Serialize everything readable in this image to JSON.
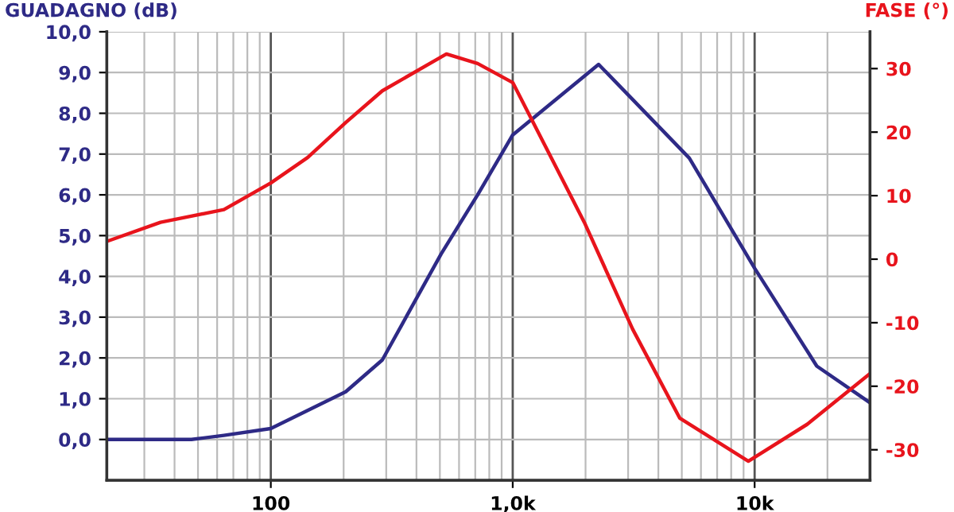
{
  "chart_data": {
    "type": "line",
    "ylabel": "GUADAGNO (dB)",
    "y2label": "FASE (°)",
    "log": "x",
    "grid": true,
    "line_style": "solid",
    "marker": "none",
    "xlim": [
      21,
      30000
    ],
    "xticks": [
      {
        "value": 100,
        "label": "100"
      },
      {
        "value": 1000,
        "label": "1,0k"
      },
      {
        "value": 10000,
        "label": "10k"
      }
    ],
    "ylim": [
      -1,
      10
    ],
    "yticks": [
      {
        "value": 0,
        "label": "0,0"
      },
      {
        "value": 1,
        "label": "1,0"
      },
      {
        "value": 2,
        "label": "2,0"
      },
      {
        "value": 3,
        "label": "3,0"
      },
      {
        "value": 4,
        "label": "4,0"
      },
      {
        "value": 5,
        "label": "5,0"
      },
      {
        "value": 6,
        "label": "6,0"
      },
      {
        "value": 7,
        "label": "7,0"
      },
      {
        "value": 8,
        "label": "8,0"
      },
      {
        "value": 9,
        "label": "9,0"
      },
      {
        "value": 10,
        "label": "10,0"
      }
    ],
    "y2lim": [
      -34.8,
      35.8
    ],
    "y2ticks": [
      -30,
      -20,
      -10,
      0,
      10,
      20,
      30
    ],
    "series": [
      {
        "color": "#2e2a86",
        "x": [
          21,
          47,
          64,
          100,
          204,
          289,
          506,
          716,
          1000,
          2265,
          5370,
          10000,
          18070,
          30000
        ],
        "values": [
          0,
          0,
          0.1,
          0.27,
          1.17,
          1.95,
          4.55,
          6.0,
          7.47,
          9.2,
          6.9,
          4.2,
          1.8,
          0.9
        ]
      },
      {
        "color": "#e8141c",
        "axis": "y2",
        "x": [
          21,
          35,
          64,
          100,
          142,
          204,
          289,
          532,
          716,
          1000,
          1977,
          3130,
          4900,
          9420,
          16480,
          30000
        ],
        "values": [
          2.8,
          5.8,
          7.8,
          12,
          16,
          21.5,
          26.5,
          32.3,
          30.8,
          27.8,
          5.8,
          -11,
          -25,
          -31.8,
          -26,
          -18
        ]
      }
    ]
  }
}
